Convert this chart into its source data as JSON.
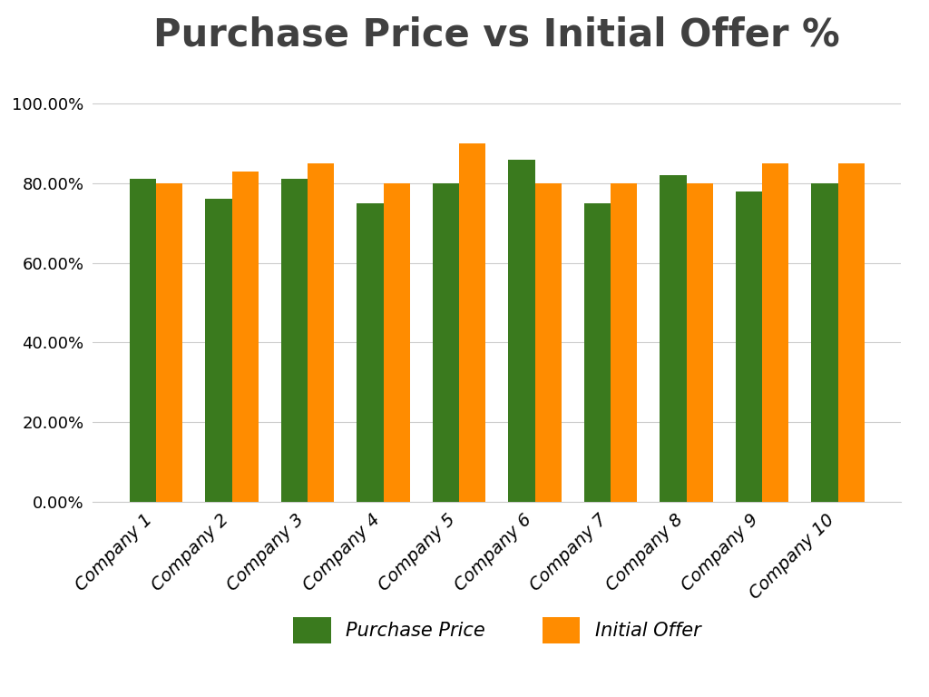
{
  "title": "Purchase Price vs Initial Offer %",
  "companies": [
    "Company 1",
    "Company 2",
    "Company 3",
    "Company 4",
    "Company 5",
    "Company 6",
    "Company 7",
    "Company 8",
    "Company 9",
    "Company 10"
  ],
  "purchase_price": [
    0.81,
    0.76,
    0.81,
    0.75,
    0.8,
    0.86,
    0.75,
    0.82,
    0.78,
    0.8
  ],
  "initial_offer": [
    0.8,
    0.83,
    0.85,
    0.8,
    0.9,
    0.8,
    0.8,
    0.8,
    0.85,
    0.85
  ],
  "bar_color_purchase": "#3a7a1e",
  "bar_color_offer": "#ff8c00",
  "background_color": "#ffffff",
  "title_fontsize": 30,
  "tick_fontsize": 13,
  "xtick_fontsize": 14,
  "legend_fontsize": 15,
  "ylim": [
    0,
    1.05
  ],
  "yticks": [
    0.0,
    0.2,
    0.4,
    0.6,
    0.8,
    1.0
  ],
  "legend_labels": [
    "Purchase Price",
    "Initial Offer"
  ],
  "bar_width": 0.35,
  "grid_color": "#cccccc",
  "title_color": "#404040"
}
